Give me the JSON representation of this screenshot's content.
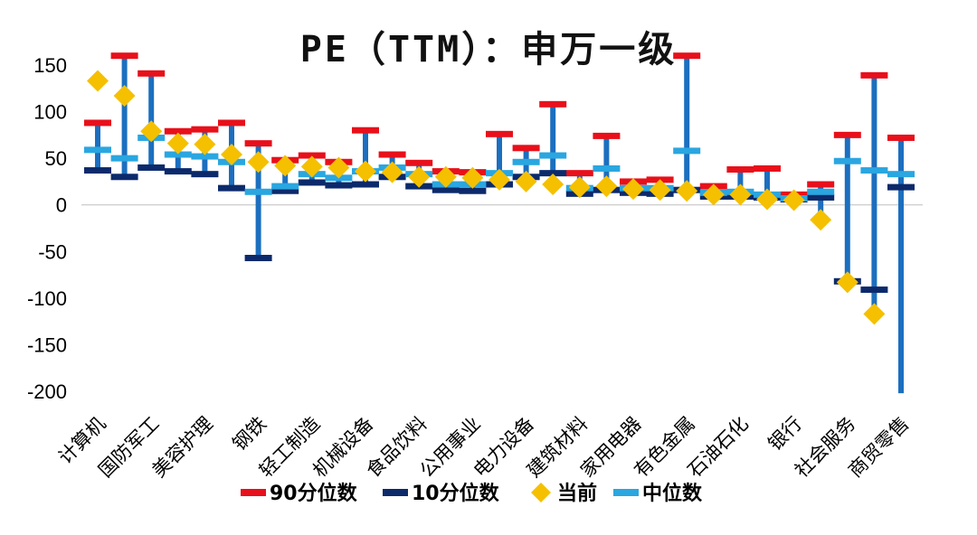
{
  "chart_data": {
    "type": "range-plot",
    "title": "PE（TTM）：申万一级",
    "xlabel": "",
    "ylabel": "",
    "ylim": [
      -200,
      150
    ],
    "yticks": [
      150,
      100,
      50,
      0,
      -50,
      -100,
      -150,
      -200
    ],
    "grid": false,
    "legend_position": "bottom",
    "series": [
      {
        "name": "90分位数",
        "color": "#e8101a"
      },
      {
        "name": "10分位数",
        "color": "#0c2a6b"
      },
      {
        "name": "当前",
        "color": "#f5c000"
      },
      {
        "name": "中位数",
        "color": "#2aa6e0"
      }
    ],
    "range_color": "#1c6fbf",
    "categories": [
      "计算机",
      "国防军工",
      "美容护理",
      "钢铁",
      "轻工制造",
      "机械设备",
      "食品饮料",
      "公用事业",
      "电力设备",
      "建筑材料",
      "家用电器",
      "有色金属",
      "石油石化",
      "银行",
      "社会服务",
      "商贸零售"
    ],
    "x_label_every": 2,
    "points": [
      {
        "p90": 88,
        "p10": 37,
        "current": 133,
        "median": 59,
        "top": 88,
        "bottom": 37
      },
      {
        "p90": 160,
        "p10": 30,
        "current": 117,
        "median": 50,
        "top": 160,
        "bottom": 30
      },
      {
        "p90": 141,
        "p10": 40,
        "current": 79,
        "median": 72,
        "top": 141,
        "bottom": 40
      },
      {
        "p90": 79,
        "p10": 36,
        "current": 66,
        "median": 54,
        "top": 79,
        "bottom": 36
      },
      {
        "p90": 81,
        "p10": 33,
        "current": 65,
        "median": 52,
        "top": 81,
        "bottom": 33
      },
      {
        "p90": 88,
        "p10": 18,
        "current": 54,
        "median": 46,
        "top": 88,
        "bottom": 18
      },
      {
        "p90": 66,
        "p10": -57,
        "current": 46,
        "median": 14,
        "top": 66,
        "bottom": -57
      },
      {
        "p90": 48,
        "p10": 15,
        "current": 42,
        "median": 20,
        "top": 48,
        "bottom": 15
      },
      {
        "p90": 53,
        "p10": 24,
        "current": 41,
        "median": 33,
        "top": 53,
        "bottom": 24
      },
      {
        "p90": 46,
        "p10": 21,
        "current": 40,
        "median": 29,
        "top": 46,
        "bottom": 21
      },
      {
        "p90": 80,
        "p10": 22,
        "current": 36,
        "median": 36,
        "top": 80,
        "bottom": 22
      },
      {
        "p90": 54,
        "p10": 30,
        "current": 35,
        "median": 40,
        "top": 54,
        "bottom": 30
      },
      {
        "p90": 45,
        "p10": 20,
        "current": 30,
        "median": 33,
        "top": 45,
        "bottom": 20
      },
      {
        "p90": 36,
        "p10": 16,
        "current": 30,
        "median": 22,
        "top": 36,
        "bottom": 16
      },
      {
        "p90": 35,
        "p10": 15,
        "current": 29,
        "median": 22,
        "top": 35,
        "bottom": 15
      },
      {
        "p90": 76,
        "p10": 22,
        "current": 27,
        "median": 34,
        "top": 76,
        "bottom": 22
      },
      {
        "p90": 61,
        "p10": 30,
        "current": 25,
        "median": 46,
        "top": 61,
        "bottom": 30
      },
      {
        "p90": 108,
        "p10": 34,
        "current": 22,
        "median": 53,
        "top": 108,
        "bottom": 34
      },
      {
        "p90": 34,
        "p10": 12,
        "current": 19,
        "median": 18,
        "top": 34,
        "bottom": 12
      },
      {
        "p90": 74,
        "p10": 16,
        "current": 20,
        "median": 39,
        "top": 74,
        "bottom": 16
      },
      {
        "p90": 25,
        "p10": 13,
        "current": 17,
        "median": 18,
        "top": 25,
        "bottom": 13
      },
      {
        "p90": 27,
        "p10": 12,
        "current": 16,
        "median": 18,
        "top": 27,
        "bottom": 12
      },
      {
        "p90": 160,
        "p10": 16,
        "current": 15,
        "median": 58,
        "top": 160,
        "bottom": 16
      },
      {
        "p90": 20,
        "p10": 9,
        "current": 11,
        "median": 13,
        "top": 20,
        "bottom": 9
      },
      {
        "p90": 38,
        "p10": 9,
        "current": 11,
        "median": 14,
        "top": 38,
        "bottom": 9
      },
      {
        "p90": 39,
        "p10": 8,
        "current": 6,
        "median": 11,
        "top": 39,
        "bottom": 8
      },
      {
        "p90": 11,
        "p10": 6,
        "current": 5,
        "median": 7,
        "top": 11,
        "bottom": 6
      },
      {
        "p90": 22,
        "p10": 8,
        "current": -16,
        "median": 14,
        "top": 22,
        "bottom": -16
      },
      {
        "p90": 75,
        "p10": -82,
        "current": -83,
        "median": 47,
        "top": 75,
        "bottom": -82
      },
      {
        "p90": 139,
        "p10": -91,
        "current": -117,
        "median": 37,
        "top": 139,
        "bottom": -110
      },
      {
        "p90": 72,
        "p10": 19,
        "current": null,
        "median": 33,
        "top": 72,
        "bottom": -202
      }
    ]
  }
}
